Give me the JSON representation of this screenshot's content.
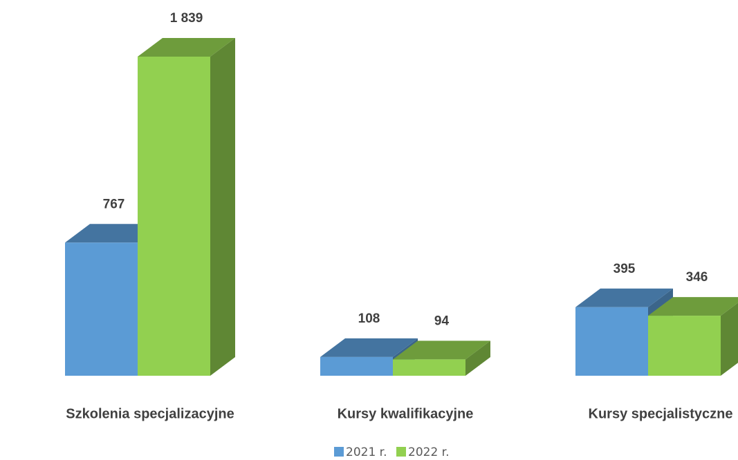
{
  "chart_data": {
    "type": "bar3d",
    "categories": [
      "Szkolenia specjalizacyjne",
      "Kursy kwalifikacyjne",
      "Kursy specjalistyczne"
    ],
    "series": [
      {
        "name": "2021 r.",
        "color": "#5b9bd5",
        "values": [
          767,
          108,
          395
        ]
      },
      {
        "name": "2022 r.",
        "color": "#92d050",
        "values": [
          1839,
          94,
          346
        ],
        "value_labels": [
          "1 839",
          "94",
          "346"
        ]
      }
    ],
    "legend": "bottom"
  }
}
